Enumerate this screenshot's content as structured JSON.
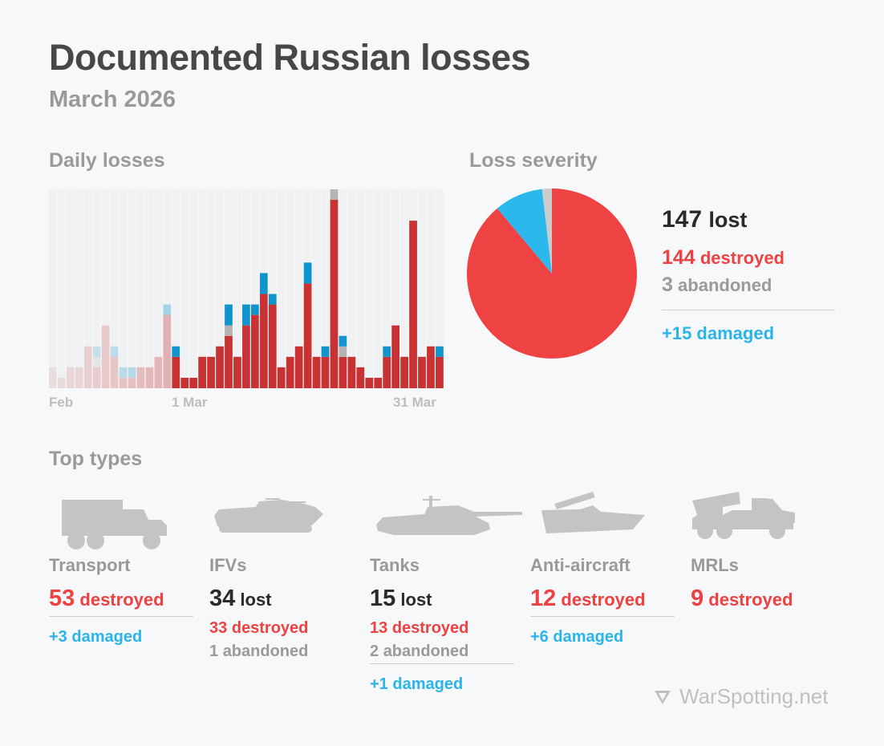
{
  "header": {
    "title": "Documented Russian losses",
    "subtitle": "March 2026"
  },
  "sections": {
    "daily": "Daily losses",
    "severity": "Loss severity",
    "types": "Top types"
  },
  "colors": {
    "destroyed": "#c83232",
    "damaged": "#0f95cc",
    "abandoned": "#b4b4b4",
    "pie_destroyed": "#ef4343",
    "pie_damaged": "#2bb8ec",
    "pie_abandoned": "#cccccc"
  },
  "chart_data": [
    {
      "type": "bar",
      "stacked": true,
      "title": "Daily losses",
      "x_tick_labels": [
        "Feb",
        "1 Mar",
        "31 Mar"
      ],
      "categories": [
        "15 Feb",
        "16 Feb",
        "17 Feb",
        "18 Feb",
        "19 Feb",
        "20 Feb",
        "21 Feb",
        "22 Feb",
        "23 Feb",
        "24 Feb",
        "25 Feb",
        "26 Feb",
        "27 Feb",
        "28 Feb",
        "1 Mar",
        "2 Mar",
        "3 Mar",
        "4 Mar",
        "5 Mar",
        "6 Mar",
        "7 Mar",
        "8 Mar",
        "9 Mar",
        "10 Mar",
        "11 Mar",
        "12 Mar",
        "13 Mar",
        "14 Mar",
        "15 Mar",
        "16 Mar",
        "17 Mar",
        "18 Mar",
        "19 Mar",
        "20 Mar",
        "21 Mar",
        "22 Mar",
        "23 Mar",
        "24 Mar",
        "25 Mar",
        "26 Mar",
        "27 Mar",
        "28 Mar",
        "29 Mar",
        "30 Mar",
        "31 Mar"
      ],
      "faded_before": "1 Mar",
      "series": [
        {
          "key": "destroyed",
          "values": [
            2,
            1,
            2,
            2,
            4,
            2,
            6,
            3,
            1,
            1,
            2,
            2,
            3,
            7,
            3,
            1,
            1,
            3,
            3,
            4,
            5,
            3,
            6,
            7,
            9,
            8,
            2,
            3,
            4,
            10,
            3,
            3,
            18,
            3,
            3,
            2,
            1,
            1,
            3,
            6,
            3,
            16,
            3,
            4,
            3
          ]
        },
        {
          "key": "abandoned",
          "values": [
            0,
            0,
            0,
            0,
            0,
            1,
            0,
            0,
            0,
            0,
            0,
            0,
            0,
            0,
            0,
            0,
            0,
            0,
            0,
            0,
            1,
            0,
            0,
            0,
            0,
            0,
            0,
            0,
            0,
            0,
            0,
            0,
            1,
            1,
            0,
            0,
            0,
            0,
            0,
            0,
            0,
            0,
            0,
            0,
            0
          ]
        },
        {
          "key": "damaged",
          "values": [
            0,
            0,
            0,
            0,
            0,
            1,
            0,
            1,
            1,
            1,
            0,
            0,
            0,
            1,
            1,
            0,
            0,
            0,
            0,
            0,
            2,
            0,
            2,
            1,
            2,
            1,
            0,
            0,
            0,
            2,
            0,
            1,
            0,
            1,
            0,
            0,
            0,
            0,
            1,
            0,
            0,
            0,
            0,
            0,
            1
          ]
        }
      ],
      "ylim": [
        0,
        19
      ],
      "grid": false
    },
    {
      "type": "pie",
      "title": "Loss severity",
      "slices": [
        {
          "key": "destroyed",
          "value": 144
        },
        {
          "key": "damaged",
          "value": 15
        },
        {
          "key": "abandoned",
          "value": 3
        }
      ]
    }
  ],
  "severity": {
    "lost_num": "147",
    "lost_label": "lost",
    "destroyed_num": "144",
    "destroyed_label": "destroyed",
    "abandoned_num": "3",
    "abandoned_label": "abandoned",
    "damaged": "+15 damaged"
  },
  "types": [
    {
      "icon": "truck-icon",
      "label": "Transport",
      "num": "53",
      "word": "destroyed",
      "main_color": "red",
      "subs": [],
      "damaged": "+3 damaged"
    },
    {
      "icon": "ifv-icon",
      "label": "IFVs",
      "num": "34",
      "word": "lost",
      "main_color": "dark",
      "subs": [
        {
          "num": "33",
          "word": "destroyed",
          "color": "red"
        },
        {
          "num": "1",
          "word": "abandoned",
          "color": "gray"
        }
      ],
      "damaged": ""
    },
    {
      "icon": "tank-icon",
      "label": "Tanks",
      "num": "15",
      "word": "lost",
      "main_color": "dark",
      "subs": [
        {
          "num": "13",
          "word": "destroyed",
          "color": "red"
        },
        {
          "num": "2",
          "word": "abandoned",
          "color": "gray"
        }
      ],
      "damaged": "+1 damaged"
    },
    {
      "icon": "anti-aircraft-icon",
      "label": "Anti-aircraft",
      "num": "12",
      "word": "destroyed",
      "main_color": "red",
      "subs": [],
      "damaged": "+6 damaged"
    },
    {
      "icon": "mrl-icon",
      "label": "MRLs",
      "num": "9",
      "word": "destroyed",
      "main_color": "red",
      "subs": [],
      "damaged": ""
    }
  ],
  "brand": {
    "name": "WarSpotting.net",
    "icon": "triangle-down-logo-icon"
  }
}
